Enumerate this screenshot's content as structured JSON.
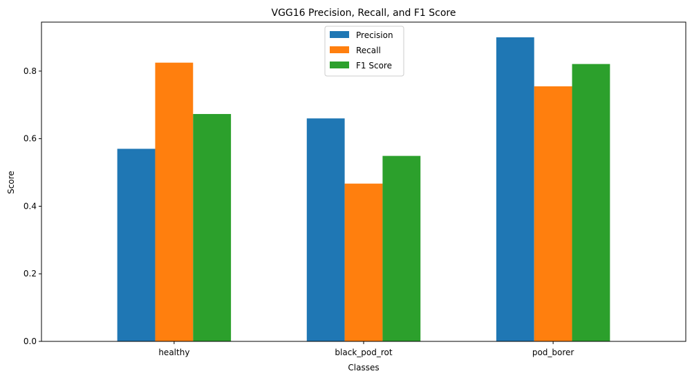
{
  "chart_data": {
    "type": "bar",
    "title": "VGG16 Precision, Recall, and F1 Score",
    "xlabel": "Classes",
    "ylabel": "Score",
    "categories": [
      "healthy",
      "black_pod_rot",
      "pod_borer"
    ],
    "series": [
      {
        "name": "Precision",
        "color": "#1f77b4",
        "values": [
          0.57,
          0.66,
          0.9
        ]
      },
      {
        "name": "Recall",
        "color": "#ff7f0e",
        "values": [
          0.825,
          0.467,
          0.755
        ]
      },
      {
        "name": "F1 Score",
        "color": "#2ca02c",
        "values": [
          0.673,
          0.549,
          0.821
        ]
      }
    ],
    "ylim": [
      0,
      0.945
    ],
    "yticks": [
      0.0,
      0.2,
      0.4,
      0.6,
      0.8
    ],
    "ytick_labels": [
      "0.0",
      "0.2",
      "0.4",
      "0.6",
      "0.8"
    ],
    "grid": false,
    "legend_position": "top-center"
  }
}
